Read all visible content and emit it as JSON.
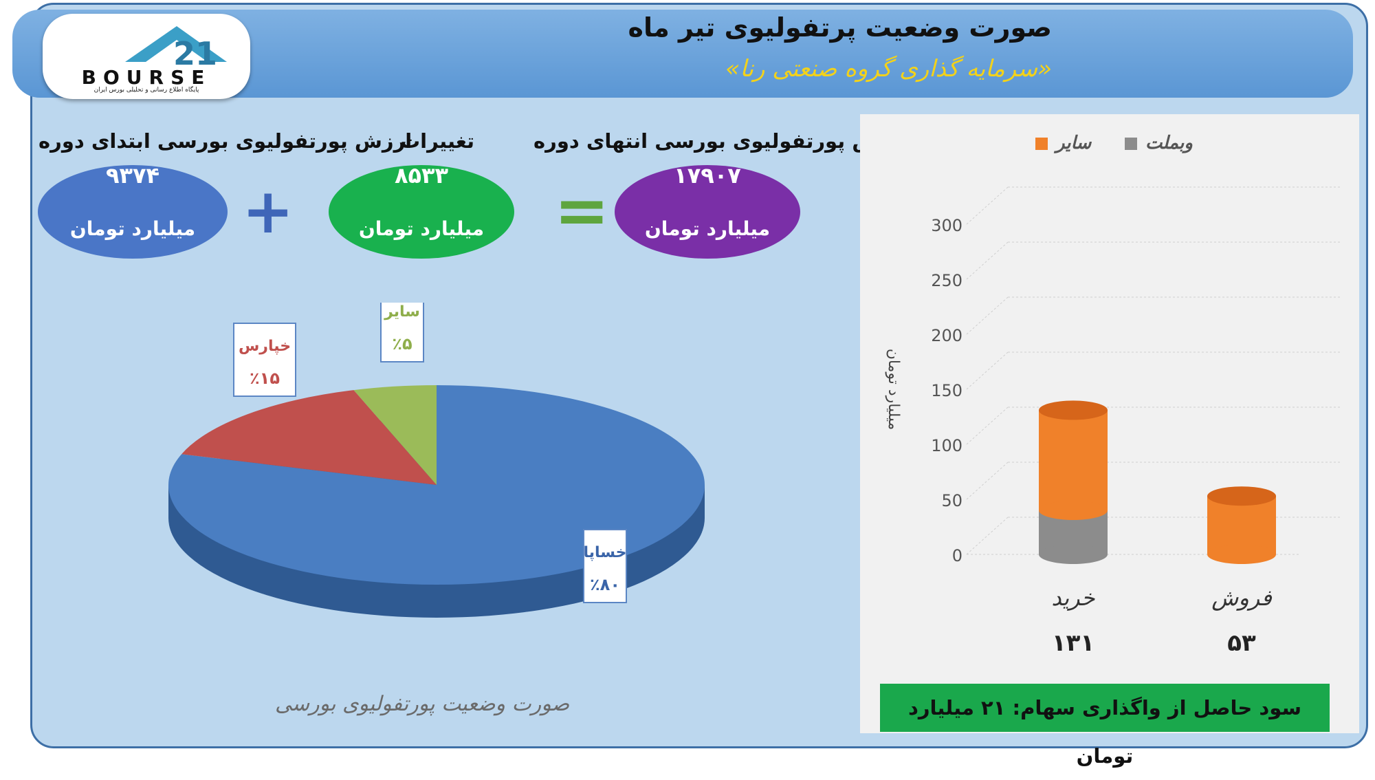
{
  "header": {
    "title": "صورت وضعیت پرتفولیوی تیر ماه",
    "subtitle": "«سرمایه گذاری گروه صنعتی رنا»"
  },
  "logo": {
    "text": "BOURSE",
    "sub": "پایگاه اطلاع رسانی و تحلیلی بورس ایران"
  },
  "summary": {
    "start": {
      "label": "ارزش پورتفولیوی بورسی ابتدای دوره",
      "value": "۹۳۷۴",
      "unit": "میلیارد تومان",
      "color": "#4a76c7"
    },
    "change": {
      "label": "تغییرات",
      "value": "۸۵۳۳",
      "unit": "میلیارد تومان",
      "color": "#19b14e"
    },
    "end": {
      "label": "ارزش پورتفولیوی بورسی انتهای دوره",
      "value": "۱۷۹۰۷",
      "unit": "میلیارد تومان",
      "color": "#7a2fa7"
    },
    "plus": "+",
    "equals": "="
  },
  "chart_data": [
    {
      "type": "pie",
      "title": "صورت وضعیت پورتفولیوی بورسی",
      "slices": [
        {
          "name": "خساپا",
          "label": "٪۸۰",
          "value": 80,
          "color": "#4a7ec2"
        },
        {
          "name": "خپارس",
          "label": "٪۱۵",
          "value": 15,
          "color": "#c0504d"
        },
        {
          "name": "سایر",
          "label": "٪۵",
          "value": 5,
          "color": "#9bbb59"
        }
      ]
    },
    {
      "type": "bar",
      "stacked": true,
      "categories": [
        "خرید",
        "فروش"
      ],
      "category_totals": [
        "۱۳۱",
        "۵۳"
      ],
      "series": [
        {
          "name": "وبملت",
          "values": [
            40,
            0
          ],
          "color": "#8c8c8c"
        },
        {
          "name": "سایر",
          "values": [
            91,
            53
          ],
          "color": "#f0812a"
        }
      ],
      "ylabel": "میلیارد تومان",
      "ylim": [
        0,
        300
      ],
      "yticks": [
        0,
        50,
        100,
        150,
        200,
        250,
        300
      ],
      "legend": "top",
      "grid": true
    }
  ],
  "banner": "سود حاصل از واگذاری سهام: ۲۱ میلیارد تومان"
}
